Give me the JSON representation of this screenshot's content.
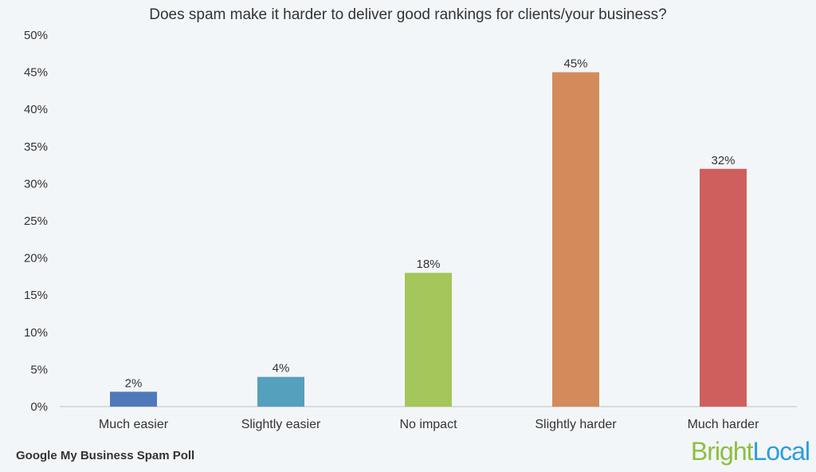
{
  "chart_data": {
    "type": "bar",
    "title": "Does spam make it harder to deliver good rankings for clients/your business?",
    "categories": [
      "Much easier",
      "Slightly easier",
      "No impact",
      "Slightly harder",
      "Much harder"
    ],
    "values": [
      2,
      4,
      18,
      45,
      32
    ],
    "value_labels": [
      "2%",
      "4%",
      "18%",
      "45%",
      "32%"
    ],
    "colors": [
      "#4f79b9",
      "#55a0bd",
      "#a5c65a",
      "#d38b5c",
      "#cf5f5d"
    ],
    "ylim": [
      0,
      50
    ],
    "yticks": [
      "0%",
      "5%",
      "10%",
      "15%",
      "20%",
      "25%",
      "30%",
      "35%",
      "40%",
      "45%",
      "50%"
    ],
    "xlabel": "",
    "ylabel": "",
    "grid": false,
    "legend": "none"
  },
  "footer": {
    "source_label": "Google My Business Spam Poll"
  },
  "brand": {
    "part1": "Bright",
    "part2": "Local"
  }
}
